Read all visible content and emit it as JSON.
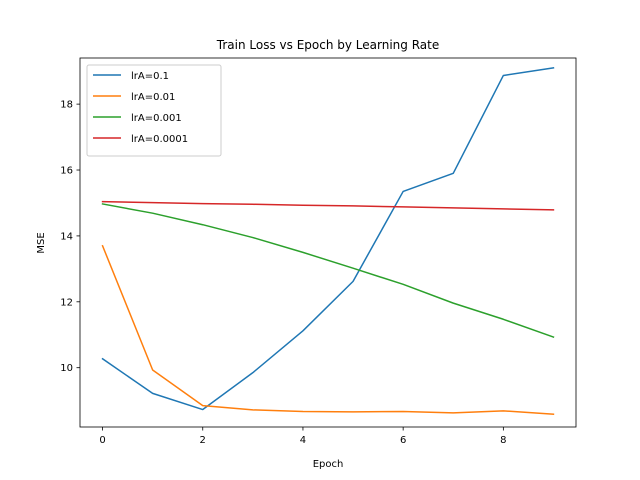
{
  "chart_data": {
    "type": "line",
    "title": "Train Loss vs Epoch by Learning Rate",
    "xlabel": "Epoch",
    "ylabel": "MSE",
    "xlim": [
      -0.45,
      9.45
    ],
    "ylim": [
      8.2,
      19.4
    ],
    "xticks": [
      0,
      2,
      4,
      6,
      8
    ],
    "yticks": [
      10,
      12,
      14,
      16,
      18
    ],
    "grid": false,
    "legend_position": "upper-left",
    "x": [
      0,
      1,
      2,
      3,
      4,
      5,
      6,
      7,
      8,
      9
    ],
    "series": [
      {
        "name": "lrA=0.1",
        "color": "#1f77b4",
        "values": [
          10.27,
          9.22,
          8.73,
          9.85,
          11.12,
          12.62,
          15.35,
          15.9,
          18.87,
          19.1
        ]
      },
      {
        "name": "lrA=0.01",
        "color": "#ff7f0e",
        "values": [
          13.7,
          9.93,
          8.85,
          8.72,
          8.67,
          8.66,
          8.67,
          8.63,
          8.69,
          8.59
        ]
      },
      {
        "name": "lrA=0.001",
        "color": "#2ca02c",
        "values": [
          14.97,
          14.69,
          14.34,
          13.95,
          13.5,
          13.02,
          12.53,
          11.96,
          11.47,
          10.93
        ]
      },
      {
        "name": "lrA=0.0001",
        "color": "#d62728",
        "values": [
          15.04,
          15.01,
          14.98,
          14.96,
          14.93,
          14.91,
          14.88,
          14.85,
          14.82,
          14.79
        ]
      }
    ]
  }
}
